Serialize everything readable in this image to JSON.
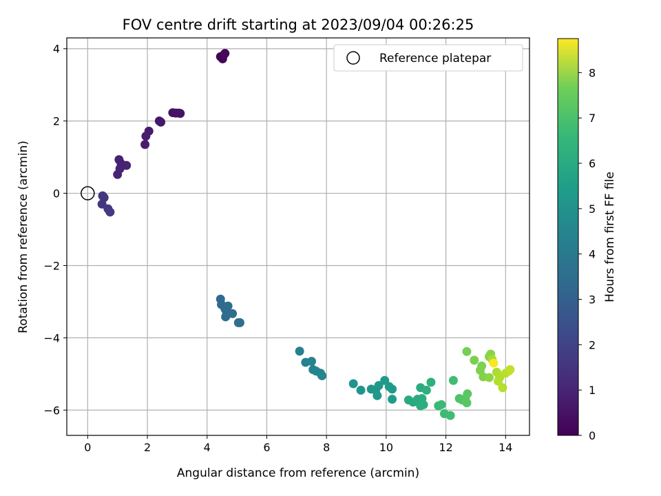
{
  "chart_data": {
    "type": "scatter",
    "title": "FOV centre drift starting at 2023/09/04 00:26:25",
    "xlabel": "Angular distance from reference (arcmin)",
    "ylabel": "Rotation from reference (arcmin)",
    "xlim": [
      -0.7,
      14.8
    ],
    "ylim": [
      -6.7,
      4.3
    ],
    "xticks": [
      0,
      2,
      4,
      6,
      8,
      10,
      12,
      14
    ],
    "yticks": [
      -6,
      -4,
      -2,
      0,
      2,
      4
    ],
    "grid": true,
    "legend": {
      "placement": "upper-right",
      "entries": [
        "Reference platepar"
      ]
    },
    "reference_point": {
      "x": 0,
      "y": 0,
      "label": "Reference platepar"
    },
    "colorbar": {
      "label": "Hours from first FF file",
      "colormap": "viridis",
      "range": [
        0,
        8.75
      ],
      "ticks": [
        0,
        1,
        2,
        3,
        4,
        5,
        6,
        7,
        8
      ]
    },
    "series": [
      {
        "points": [
          {
            "x": 4.45,
            "y": 3.78,
            "c": 0.0
          },
          {
            "x": 4.52,
            "y": 3.72,
            "c": 0.05
          },
          {
            "x": 4.55,
            "y": 3.82,
            "c": 0.1
          },
          {
            "x": 4.6,
            "y": 3.87,
            "c": 0.15
          },
          {
            "x": 2.85,
            "y": 2.23,
            "c": 0.4
          },
          {
            "x": 2.95,
            "y": 2.22,
            "c": 0.42
          },
          {
            "x": 3.05,
            "y": 2.22,
            "c": 0.45
          },
          {
            "x": 3.1,
            "y": 2.21,
            "c": 0.47
          },
          {
            "x": 2.4,
            "y": 2.0,
            "c": 0.55
          },
          {
            "x": 2.45,
            "y": 1.97,
            "c": 0.57
          },
          {
            "x": 2.05,
            "y": 1.72,
            "c": 0.65
          },
          {
            "x": 1.95,
            "y": 1.58,
            "c": 0.68
          },
          {
            "x": 1.92,
            "y": 1.35,
            "c": 0.7
          },
          {
            "x": 1.05,
            "y": 0.93,
            "c": 0.8
          },
          {
            "x": 1.12,
            "y": 0.82,
            "c": 0.82
          },
          {
            "x": 1.3,
            "y": 0.77,
            "c": 0.84
          },
          {
            "x": 1.08,
            "y": 0.68,
            "c": 0.86
          },
          {
            "x": 1.0,
            "y": 0.52,
            "c": 0.88
          },
          {
            "x": 0.5,
            "y": -0.07,
            "c": 1.4
          },
          {
            "x": 0.55,
            "y": -0.12,
            "c": 1.42
          },
          {
            "x": 0.48,
            "y": -0.3,
            "c": 1.45
          },
          {
            "x": 0.68,
            "y": -0.43,
            "c": 1.5
          },
          {
            "x": 0.75,
            "y": -0.52,
            "c": 1.53
          },
          {
            "x": 4.45,
            "y": -2.93,
            "c": 3.0
          },
          {
            "x": 4.48,
            "y": -3.08,
            "c": 3.02
          },
          {
            "x": 4.6,
            "y": -3.2,
            "c": 3.05
          },
          {
            "x": 4.7,
            "y": -3.12,
            "c": 3.07
          },
          {
            "x": 4.65,
            "y": -3.28,
            "c": 3.1
          },
          {
            "x": 4.62,
            "y": -3.42,
            "c": 3.12
          },
          {
            "x": 4.85,
            "y": -3.33,
            "c": 3.15
          },
          {
            "x": 5.05,
            "y": -3.58,
            "c": 3.2
          },
          {
            "x": 5.1,
            "y": -3.58,
            "c": 3.22
          },
          {
            "x": 7.1,
            "y": -4.37,
            "c": 3.8
          },
          {
            "x": 7.3,
            "y": -4.68,
            "c": 3.85
          },
          {
            "x": 7.5,
            "y": -4.65,
            "c": 3.88
          },
          {
            "x": 7.55,
            "y": -4.88,
            "c": 3.9
          },
          {
            "x": 7.65,
            "y": -4.92,
            "c": 3.95
          },
          {
            "x": 7.8,
            "y": -4.98,
            "c": 4.0
          },
          {
            "x": 7.85,
            "y": -5.05,
            "c": 4.02
          },
          {
            "x": 8.9,
            "y": -5.27,
            "c": 4.5
          },
          {
            "x": 9.15,
            "y": -5.45,
            "c": 4.55
          },
          {
            "x": 9.5,
            "y": -5.42,
            "c": 4.6
          },
          {
            "x": 9.65,
            "y": -5.45,
            "c": 4.63
          },
          {
            "x": 9.7,
            "y": -5.6,
            "c": 4.66
          },
          {
            "x": 9.75,
            "y": -5.32,
            "c": 4.7
          },
          {
            "x": 9.95,
            "y": -5.18,
            "c": 4.73
          },
          {
            "x": 10.1,
            "y": -5.35,
            "c": 4.77
          },
          {
            "x": 10.2,
            "y": -5.42,
            "c": 4.8
          },
          {
            "x": 10.2,
            "y": -5.7,
            "c": 4.83
          },
          {
            "x": 10.75,
            "y": -5.72,
            "c": 5.3
          },
          {
            "x": 10.9,
            "y": -5.78,
            "c": 5.33
          },
          {
            "x": 11.05,
            "y": -5.7,
            "c": 5.36
          },
          {
            "x": 11.15,
            "y": -5.38,
            "c": 5.4
          },
          {
            "x": 11.2,
            "y": -5.68,
            "c": 5.43
          },
          {
            "x": 11.15,
            "y": -5.88,
            "c": 5.46
          },
          {
            "x": 11.25,
            "y": -5.85,
            "c": 5.5
          },
          {
            "x": 11.35,
            "y": -5.45,
            "c": 5.53
          },
          {
            "x": 11.5,
            "y": -5.23,
            "c": 5.56
          },
          {
            "x": 11.75,
            "y": -5.88,
            "c": 5.9
          },
          {
            "x": 11.85,
            "y": -5.85,
            "c": 5.93
          },
          {
            "x": 11.95,
            "y": -6.1,
            "c": 5.96
          },
          {
            "x": 12.15,
            "y": -6.15,
            "c": 6.0
          },
          {
            "x": 12.25,
            "y": -5.18,
            "c": 6.05
          },
          {
            "x": 12.45,
            "y": -5.68,
            "c": 6.3
          },
          {
            "x": 12.55,
            "y": -5.72,
            "c": 6.35
          },
          {
            "x": 12.65,
            "y": -5.68,
            "c": 6.4
          },
          {
            "x": 12.7,
            "y": -5.8,
            "c": 6.45
          },
          {
            "x": 12.72,
            "y": -5.55,
            "c": 6.5
          },
          {
            "x": 12.7,
            "y": -4.38,
            "c": 6.9
          },
          {
            "x": 12.95,
            "y": -4.62,
            "c": 6.95
          },
          {
            "x": 13.2,
            "y": -4.78,
            "c": 7.0
          },
          {
            "x": 13.15,
            "y": -4.9,
            "c": 7.05
          },
          {
            "x": 13.25,
            "y": -5.08,
            "c": 7.1
          },
          {
            "x": 13.45,
            "y": -4.52,
            "c": 7.15
          },
          {
            "x": 13.5,
            "y": -4.45,
            "c": 7.2
          },
          {
            "x": 13.45,
            "y": -5.1,
            "c": 7.25
          },
          {
            "x": 13.55,
            "y": -4.6,
            "c": 7.6
          },
          {
            "x": 13.7,
            "y": -4.95,
            "c": 7.65
          },
          {
            "x": 13.8,
            "y": -5.1,
            "c": 7.7
          },
          {
            "x": 13.75,
            "y": -5.2,
            "c": 7.75
          },
          {
            "x": 13.9,
            "y": -5.38,
            "c": 7.8
          },
          {
            "x": 14.0,
            "y": -4.98,
            "c": 7.85
          },
          {
            "x": 14.1,
            "y": -4.92,
            "c": 7.9
          },
          {
            "x": 14.15,
            "y": -4.88,
            "c": 7.95
          },
          {
            "x": 13.6,
            "y": -4.7,
            "c": 8.7
          }
        ]
      }
    ]
  }
}
